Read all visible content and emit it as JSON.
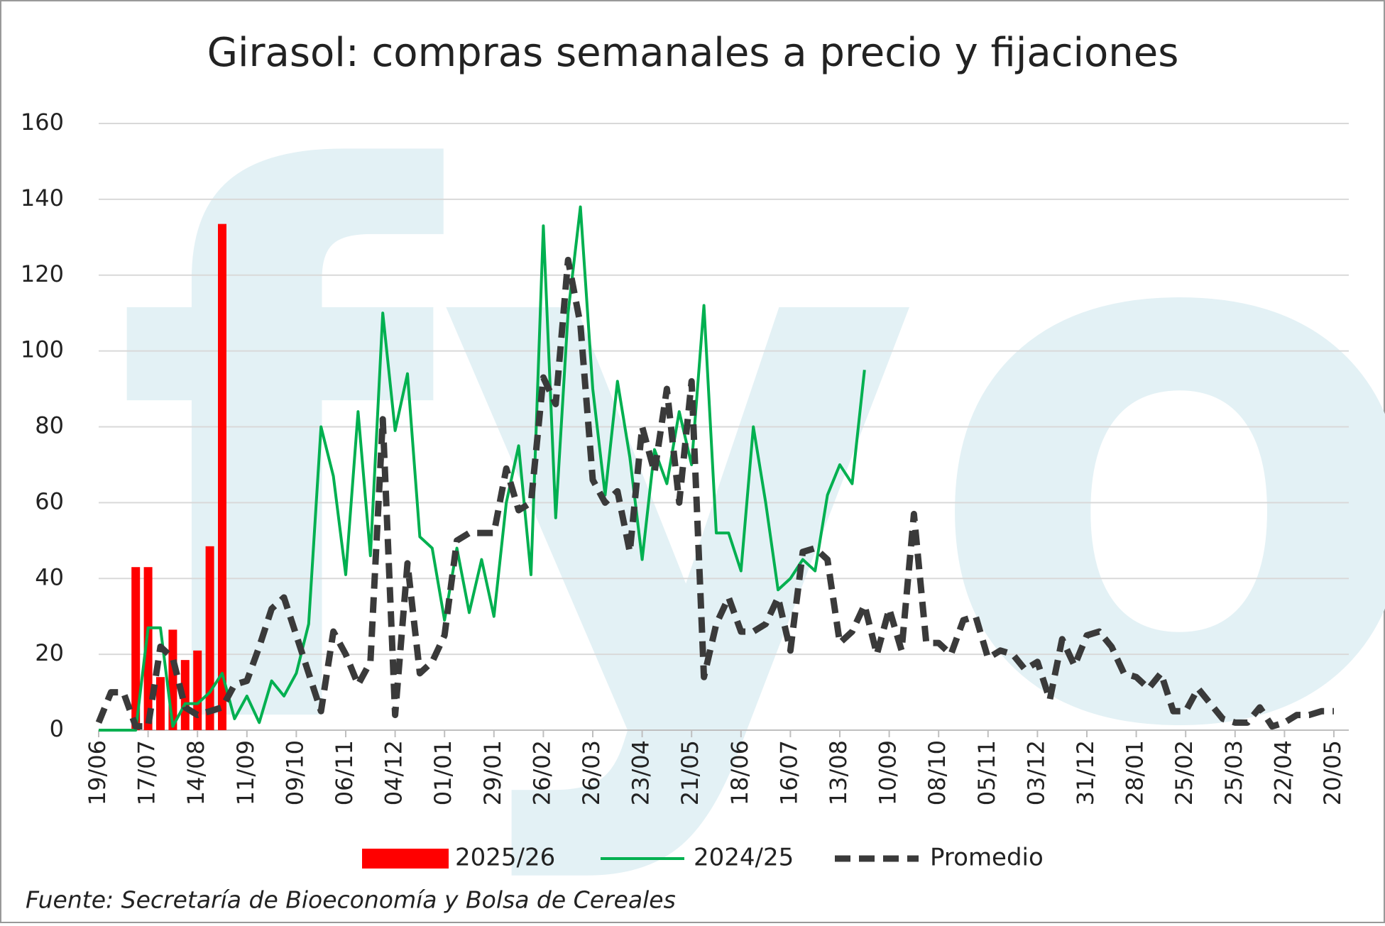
{
  "chart_data": {
    "type": "combo",
    "title": "Girasol: compras semanales a precio y fijaciones",
    "source": "Fuente: Secretaría de Bioeconomía y Bolsa de Cereales",
    "watermark": "fyo",
    "categories": [
      "19/06",
      null,
      null,
      null,
      "17/07",
      null,
      null,
      null,
      "14/08",
      null,
      null,
      null,
      "11/09",
      null,
      null,
      null,
      "09/10",
      null,
      null,
      null,
      "06/11",
      null,
      null,
      null,
      "04/12",
      null,
      null,
      null,
      "01/01",
      null,
      null,
      null,
      "29/01",
      null,
      null,
      null,
      "26/02",
      null,
      null,
      null,
      "26/03",
      null,
      null,
      null,
      "23/04",
      null,
      null,
      null,
      "21/05",
      null,
      null,
      null,
      "18/06",
      null,
      null,
      null,
      "16/07",
      null,
      null,
      null,
      "13/08",
      null,
      null,
      null,
      "10/09",
      null,
      null,
      null,
      "08/10",
      null,
      null,
      null,
      "05/11",
      null,
      null,
      null,
      "03/12",
      null,
      null,
      null,
      "31/12",
      null,
      null,
      null,
      "28/01",
      null,
      null,
      null,
      "25/02",
      null,
      null,
      null,
      "25/03",
      null,
      null,
      null,
      "22/04",
      null,
      null,
      null,
      "20/05"
    ],
    "series": [
      {
        "name": "2025/26",
        "kind": "bar",
        "color": "#ff0000",
        "values": [
          0,
          0,
          0,
          43,
          43,
          14,
          26.5,
          18.5,
          21,
          48.5,
          133.5,
          null,
          null,
          null,
          null,
          null,
          null,
          null,
          null,
          null,
          null,
          null,
          null,
          null,
          null,
          null,
          null,
          null,
          null,
          null,
          null,
          null,
          null,
          null,
          null,
          null,
          null,
          null,
          null,
          null,
          null,
          null,
          null,
          null,
          null,
          null,
          null,
          null,
          null,
          null,
          null,
          null,
          null,
          null,
          null,
          null,
          null,
          null,
          null,
          null,
          null,
          null,
          null,
          null,
          null,
          null,
          null,
          null,
          null,
          null,
          null,
          null,
          null,
          null,
          null,
          null,
          null,
          null,
          null,
          null,
          null,
          null,
          null,
          null,
          null,
          null,
          null,
          null,
          null,
          null,
          null,
          null,
          null,
          null,
          null,
          null,
          null,
          null,
          null,
          null,
          null
        ]
      },
      {
        "name": "2024/25",
        "kind": "line",
        "color": "#00b050",
        "values": [
          0,
          0,
          0,
          0,
          27,
          27,
          1,
          7,
          7,
          10,
          15,
          3,
          9,
          2,
          13,
          9,
          15,
          28,
          80,
          67,
          41,
          84,
          46,
          110,
          79,
          94,
          51,
          48,
          29,
          48,
          31,
          45,
          30,
          60,
          75,
          41,
          133,
          56,
          110,
          138,
          90,
          62,
          92,
          72,
          45,
          74,
          65,
          84,
          70,
          112,
          52,
          52,
          42,
          80,
          60,
          37,
          40,
          45,
          42,
          62,
          70,
          65,
          95,
          null,
          null,
          null,
          null,
          null,
          null,
          null,
          null,
          null,
          null,
          null,
          null,
          null,
          null,
          null,
          null,
          null,
          null,
          null,
          null,
          null,
          null,
          null,
          null,
          null,
          null,
          null,
          null,
          null,
          null,
          null,
          null,
          null,
          null,
          null,
          null,
          null,
          null
        ]
      },
      {
        "name": "Promedio",
        "kind": "dashed",
        "color": "#3a3a3a",
        "values": [
          2,
          10,
          10,
          1,
          1,
          22,
          19,
          6,
          4,
          5,
          6,
          12,
          13,
          22,
          32,
          35,
          25,
          15,
          5,
          26,
          20,
          12,
          18,
          82,
          4,
          44,
          15,
          18,
          25,
          50,
          52,
          52,
          52,
          69,
          58,
          60,
          93,
          86,
          124,
          107,
          66,
          60,
          63,
          47,
          80,
          68,
          90,
          60,
          92,
          14,
          28,
          35,
          26,
          26,
          28,
          35,
          21,
          47,
          48,
          45,
          23,
          26,
          33,
          20,
          32,
          21,
          57,
          23,
          23,
          20,
          29,
          30,
          19,
          21,
          20,
          16,
          18,
          8,
          24,
          17,
          25,
          26,
          22,
          15,
          14,
          11,
          15,
          5,
          5,
          11,
          7,
          3,
          2,
          2,
          6,
          1,
          2,
          4,
          4,
          5,
          5
        ]
      }
    ],
    "ylim": [
      0,
      160
    ],
    "yticks": [
      0,
      20,
      40,
      60,
      80,
      100,
      120,
      140,
      160
    ],
    "grid": true
  }
}
